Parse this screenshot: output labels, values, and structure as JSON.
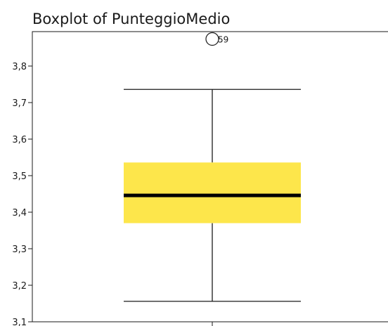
{
  "chart_data": {
    "type": "boxplot",
    "title": "Boxplot of PunteggioMedio",
    "xlabel": "",
    "ylabel": "",
    "ylim": [
      3.1,
      3.892
    ],
    "yticks": [
      3.1,
      3.2,
      3.3,
      3.4,
      3.5,
      3.6,
      3.7,
      3.8
    ],
    "ytick_labels": [
      "3,1",
      "3,2",
      "3,3",
      "3,4",
      "3,5",
      "3,6",
      "3,7",
      "3,8"
    ],
    "box": {
      "whisker_low": 3.156,
      "q1": 3.37,
      "median": 3.446,
      "q3": 3.536,
      "whisker_high": 3.736
    },
    "outliers": [
      {
        "label": "59",
        "value": 3.874
      }
    ],
    "colors": {
      "box_fill": "#fde64b",
      "median": "#000000",
      "lines": "#1a1a1a"
    }
  }
}
